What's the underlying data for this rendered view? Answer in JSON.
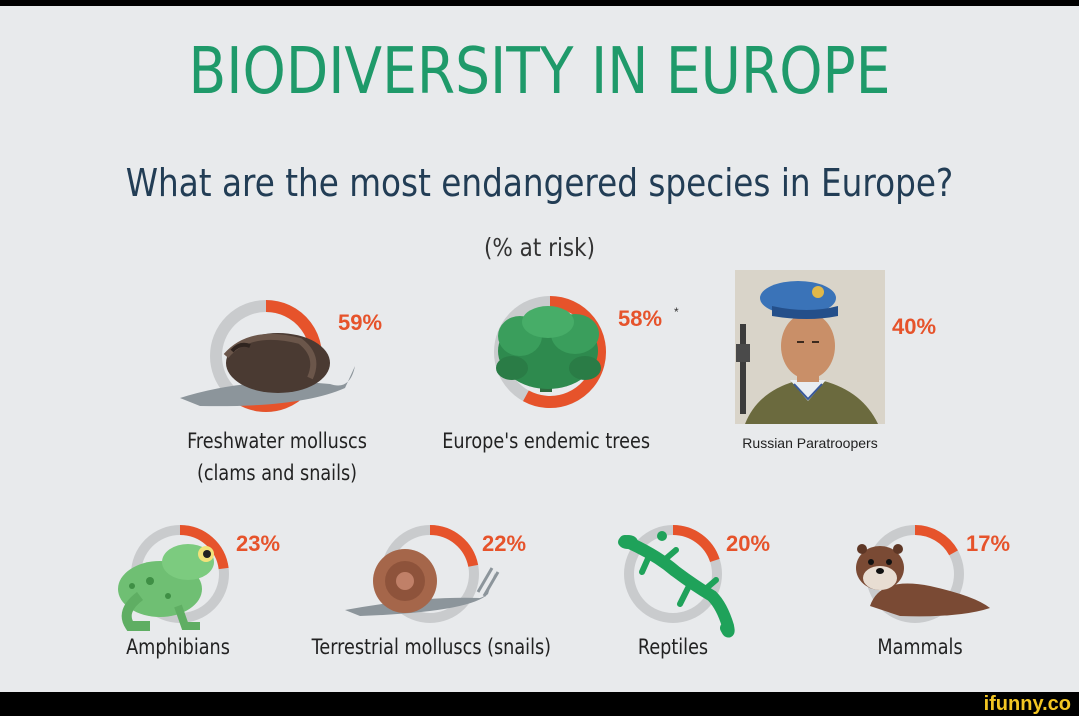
{
  "header": {
    "title": "BIODIVERSITY IN EUROPE",
    "subtitle": "What are the most endangered species in Europe?",
    "unit_label": "(% at risk)"
  },
  "colors": {
    "title": "#1f9a6a",
    "subtitle": "#223d55",
    "ring_track": "#c9cbcd",
    "ring_value": "#e6532b",
    "percent_text": "#e6532b"
  },
  "chart_data": {
    "type": "pie",
    "title": "What are the most endangered species in Europe?",
    "ylabel": "(% at risk)",
    "categories": [
      "Freshwater molluscs (clams and snails)",
      "Europe's endemic trees",
      "Russian Paratroopers",
      "Amphibians",
      "Terrestrial molluscs (snails)",
      "Reptiles",
      "Mammals"
    ],
    "values": [
      59,
      58,
      40,
      23,
      22,
      20,
      17
    ],
    "items": [
      {
        "label_lines": [
          "Freshwater molluscs",
          "(clams and snails)"
        ],
        "value": 59,
        "value_label": "59%",
        "icon": "freshwater-snail-icon"
      },
      {
        "label_lines": [
          "Europe's endemic trees"
        ],
        "value": 58,
        "value_label": "58%",
        "note_mark": "*",
        "icon": "tree-icon"
      },
      {
        "label_lines": [
          "Russian Paratroopers"
        ],
        "value": 40,
        "value_label": "40%",
        "icon": "paratrooper-portrait"
      },
      {
        "label_lines": [
          "Amphibians"
        ],
        "value": 23,
        "value_label": "23%",
        "icon": "frog-icon"
      },
      {
        "label_lines": [
          "Terrestrial molluscs (snails)"
        ],
        "value": 22,
        "value_label": "22%",
        "icon": "land-snail-icon"
      },
      {
        "label_lines": [
          "Reptiles"
        ],
        "value": 20,
        "value_label": "20%",
        "icon": "lizard-icon"
      },
      {
        "label_lines": [
          "Mammals"
        ],
        "value": 17,
        "value_label": "17%",
        "icon": "otter-icon"
      }
    ]
  },
  "watermark": "ifunny.co"
}
